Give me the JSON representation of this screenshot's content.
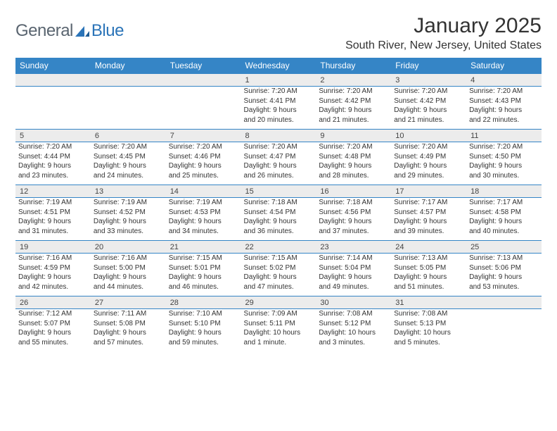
{
  "brand": {
    "part1": "General",
    "part2": "Blue"
  },
  "title": "January 2025",
  "location": "South River, New Jersey, United States",
  "colors": {
    "header_bg": "#3585c6",
    "header_text": "#ffffff",
    "daynum_bg": "#ececec",
    "rule": "#3585c6",
    "text": "#333333",
    "logo_gray": "#5a6570",
    "logo_blue": "#2b74b8"
  },
  "fonts": {
    "title_size": 30,
    "location_size": 16,
    "header_size": 12,
    "daynum_size": 11,
    "detail_size": 10
  },
  "day_headers": [
    "Sunday",
    "Monday",
    "Tuesday",
    "Wednesday",
    "Thursday",
    "Friday",
    "Saturday"
  ],
  "weeks": [
    [
      {
        "n": "",
        "l": [
          "",
          "",
          "",
          ""
        ]
      },
      {
        "n": "",
        "l": [
          "",
          "",
          "",
          ""
        ]
      },
      {
        "n": "",
        "l": [
          "",
          "",
          "",
          ""
        ]
      },
      {
        "n": "1",
        "l": [
          "Sunrise: 7:20 AM",
          "Sunset: 4:41 PM",
          "Daylight: 9 hours",
          "and 20 minutes."
        ]
      },
      {
        "n": "2",
        "l": [
          "Sunrise: 7:20 AM",
          "Sunset: 4:42 PM",
          "Daylight: 9 hours",
          "and 21 minutes."
        ]
      },
      {
        "n": "3",
        "l": [
          "Sunrise: 7:20 AM",
          "Sunset: 4:42 PM",
          "Daylight: 9 hours",
          "and 21 minutes."
        ]
      },
      {
        "n": "4",
        "l": [
          "Sunrise: 7:20 AM",
          "Sunset: 4:43 PM",
          "Daylight: 9 hours",
          "and 22 minutes."
        ]
      }
    ],
    [
      {
        "n": "5",
        "l": [
          "Sunrise: 7:20 AM",
          "Sunset: 4:44 PM",
          "Daylight: 9 hours",
          "and 23 minutes."
        ]
      },
      {
        "n": "6",
        "l": [
          "Sunrise: 7:20 AM",
          "Sunset: 4:45 PM",
          "Daylight: 9 hours",
          "and 24 minutes."
        ]
      },
      {
        "n": "7",
        "l": [
          "Sunrise: 7:20 AM",
          "Sunset: 4:46 PM",
          "Daylight: 9 hours",
          "and 25 minutes."
        ]
      },
      {
        "n": "8",
        "l": [
          "Sunrise: 7:20 AM",
          "Sunset: 4:47 PM",
          "Daylight: 9 hours",
          "and 26 minutes."
        ]
      },
      {
        "n": "9",
        "l": [
          "Sunrise: 7:20 AM",
          "Sunset: 4:48 PM",
          "Daylight: 9 hours",
          "and 28 minutes."
        ]
      },
      {
        "n": "10",
        "l": [
          "Sunrise: 7:20 AM",
          "Sunset: 4:49 PM",
          "Daylight: 9 hours",
          "and 29 minutes."
        ]
      },
      {
        "n": "11",
        "l": [
          "Sunrise: 7:20 AM",
          "Sunset: 4:50 PM",
          "Daylight: 9 hours",
          "and 30 minutes."
        ]
      }
    ],
    [
      {
        "n": "12",
        "l": [
          "Sunrise: 7:19 AM",
          "Sunset: 4:51 PM",
          "Daylight: 9 hours",
          "and 31 minutes."
        ]
      },
      {
        "n": "13",
        "l": [
          "Sunrise: 7:19 AM",
          "Sunset: 4:52 PM",
          "Daylight: 9 hours",
          "and 33 minutes."
        ]
      },
      {
        "n": "14",
        "l": [
          "Sunrise: 7:19 AM",
          "Sunset: 4:53 PM",
          "Daylight: 9 hours",
          "and 34 minutes."
        ]
      },
      {
        "n": "15",
        "l": [
          "Sunrise: 7:18 AM",
          "Sunset: 4:54 PM",
          "Daylight: 9 hours",
          "and 36 minutes."
        ]
      },
      {
        "n": "16",
        "l": [
          "Sunrise: 7:18 AM",
          "Sunset: 4:56 PM",
          "Daylight: 9 hours",
          "and 37 minutes."
        ]
      },
      {
        "n": "17",
        "l": [
          "Sunrise: 7:17 AM",
          "Sunset: 4:57 PM",
          "Daylight: 9 hours",
          "and 39 minutes."
        ]
      },
      {
        "n": "18",
        "l": [
          "Sunrise: 7:17 AM",
          "Sunset: 4:58 PM",
          "Daylight: 9 hours",
          "and 40 minutes."
        ]
      }
    ],
    [
      {
        "n": "19",
        "l": [
          "Sunrise: 7:16 AM",
          "Sunset: 4:59 PM",
          "Daylight: 9 hours",
          "and 42 minutes."
        ]
      },
      {
        "n": "20",
        "l": [
          "Sunrise: 7:16 AM",
          "Sunset: 5:00 PM",
          "Daylight: 9 hours",
          "and 44 minutes."
        ]
      },
      {
        "n": "21",
        "l": [
          "Sunrise: 7:15 AM",
          "Sunset: 5:01 PM",
          "Daylight: 9 hours",
          "and 46 minutes."
        ]
      },
      {
        "n": "22",
        "l": [
          "Sunrise: 7:15 AM",
          "Sunset: 5:02 PM",
          "Daylight: 9 hours",
          "and 47 minutes."
        ]
      },
      {
        "n": "23",
        "l": [
          "Sunrise: 7:14 AM",
          "Sunset: 5:04 PM",
          "Daylight: 9 hours",
          "and 49 minutes."
        ]
      },
      {
        "n": "24",
        "l": [
          "Sunrise: 7:13 AM",
          "Sunset: 5:05 PM",
          "Daylight: 9 hours",
          "and 51 minutes."
        ]
      },
      {
        "n": "25",
        "l": [
          "Sunrise: 7:13 AM",
          "Sunset: 5:06 PM",
          "Daylight: 9 hours",
          "and 53 minutes."
        ]
      }
    ],
    [
      {
        "n": "26",
        "l": [
          "Sunrise: 7:12 AM",
          "Sunset: 5:07 PM",
          "Daylight: 9 hours",
          "and 55 minutes."
        ]
      },
      {
        "n": "27",
        "l": [
          "Sunrise: 7:11 AM",
          "Sunset: 5:08 PM",
          "Daylight: 9 hours",
          "and 57 minutes."
        ]
      },
      {
        "n": "28",
        "l": [
          "Sunrise: 7:10 AM",
          "Sunset: 5:10 PM",
          "Daylight: 9 hours",
          "and 59 minutes."
        ]
      },
      {
        "n": "29",
        "l": [
          "Sunrise: 7:09 AM",
          "Sunset: 5:11 PM",
          "Daylight: 10 hours",
          "and 1 minute."
        ]
      },
      {
        "n": "30",
        "l": [
          "Sunrise: 7:08 AM",
          "Sunset: 5:12 PM",
          "Daylight: 10 hours",
          "and 3 minutes."
        ]
      },
      {
        "n": "31",
        "l": [
          "Sunrise: 7:08 AM",
          "Sunset: 5:13 PM",
          "Daylight: 10 hours",
          "and 5 minutes."
        ]
      },
      {
        "n": "",
        "l": [
          "",
          "",
          "",
          ""
        ]
      }
    ]
  ]
}
